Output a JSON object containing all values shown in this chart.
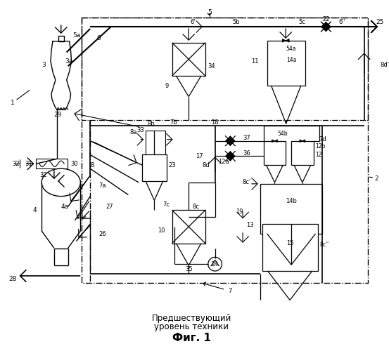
{
  "title": "Фиг. 1",
  "subtitle1": "Предшествующий",
  "subtitle2": "уровень техники",
  "bg_color": "#ffffff",
  "line_color": "#000000",
  "fig_width": 5.53,
  "fig_height": 5.0,
  "dpi": 100
}
